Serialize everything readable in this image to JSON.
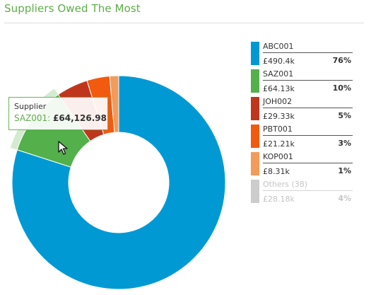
{
  "widget": {
    "title": "Suppliers Owed The Most"
  },
  "tooltip": {
    "label": "Supplier",
    "code": "SAZ001:",
    "value": "£64,126.98"
  },
  "chart_data": {
    "type": "pie",
    "donut": true,
    "total_labels": "none",
    "slices": [
      {
        "name": "ABC001",
        "value": 490.4,
        "value_label": "£490.4k",
        "percent_label": "76%",
        "color": "#0099d4"
      },
      {
        "name": "SAZ001",
        "value": 64.13,
        "value_label": "£64.13k",
        "percent_label": "10%",
        "color": "#53b04b",
        "highlighted": true
      },
      {
        "name": "JOH002",
        "value": 29.33,
        "value_label": "£29.33k",
        "percent_label": "5%",
        "color": "#c0361d"
      },
      {
        "name": "PBT001",
        "value": 21.21,
        "value_label": "£21.21k",
        "percent_label": "3%",
        "color": "#f25a0f"
      },
      {
        "name": "KOP001",
        "value": 8.31,
        "value_label": "£8.31k",
        "percent_label": "1%",
        "color": "#f39b5a"
      }
    ],
    "others": {
      "name": "Others (38)",
      "value": 28.18,
      "value_label": "£28.18k",
      "percent_label": "4%",
      "color": "#cccccc",
      "hidden_in_chart": true
    }
  },
  "legend": [
    {
      "name": "ABC001",
      "value": "£490.4k",
      "percent": "76%",
      "color": "#0099d4"
    },
    {
      "name": "SAZ001",
      "value": "£64.13k",
      "percent": "10%",
      "color": "#53b04b"
    },
    {
      "name": "JOH002",
      "value": "£29.33k",
      "percent": "5%",
      "color": "#c0361d"
    },
    {
      "name": "PBT001",
      "value": "£21.21k",
      "percent": "3%",
      "color": "#f25a0f"
    },
    {
      "name": "KOP001",
      "value": "£8.31k",
      "percent": "1%",
      "color": "#f39b5a"
    },
    {
      "name": "Others (38)",
      "value": "£28.18k",
      "percent": "4%",
      "color": "#cccccc",
      "muted": true
    }
  ]
}
